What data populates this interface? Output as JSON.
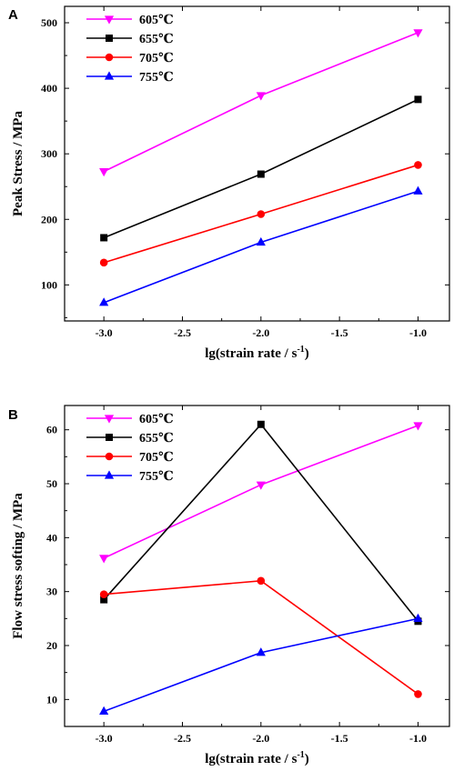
{
  "chart_data": [
    {
      "panel": "A",
      "type": "line",
      "xlabel": "lg(strain rate / s",
      "xlabel_sup": "-1",
      "xlabel_close": ")",
      "ylabel": "Peak Stress / MPa",
      "x": [
        -3.0,
        -2.0,
        -1.0
      ],
      "xlim": [
        -3.25,
        -0.8
      ],
      "ylim": [
        45,
        525
      ],
      "xticks": [
        -3.0,
        -2.5,
        -2.0,
        -1.5,
        -1.0
      ],
      "xtick_labels": [
        "-3.0",
        "-2.5",
        "-2.0",
        "-1.5",
        "-1.0"
      ],
      "yticks": [
        100,
        200,
        300,
        400,
        500
      ],
      "ytick_labels": [
        "100",
        "200",
        "300",
        "400",
        "500"
      ],
      "grid": false,
      "legend_position": "top-left",
      "series": [
        {
          "name": "605℃",
          "color": "#ff00ff",
          "marker": "triangle-down",
          "values": [
            273,
            389,
            485
          ]
        },
        {
          "name": "655℃",
          "color": "#000000",
          "marker": "square",
          "values": [
            172,
            269,
            383
          ]
        },
        {
          "name": "705℃",
          "color": "#ff0000",
          "marker": "circle",
          "values": [
            134,
            208,
            283
          ]
        },
        {
          "name": "755℃",
          "color": "#0000ff",
          "marker": "triangle-up",
          "values": [
            73,
            165,
            243
          ]
        }
      ]
    },
    {
      "panel": "B",
      "type": "line",
      "xlabel": "lg(strain rate / s",
      "xlabel_sup": "-1",
      "xlabel_close": ")",
      "ylabel": "Flow stress softing / MPa",
      "x": [
        -3.0,
        -2.0,
        -1.0
      ],
      "xlim": [
        -3.25,
        -0.8
      ],
      "ylim": [
        5,
        64.5
      ],
      "xticks": [
        -3.0,
        -2.5,
        -2.0,
        -1.5,
        -1.0
      ],
      "xtick_labels": [
        "-3.0",
        "-2.5",
        "-2.0",
        "-1.5",
        "-1.0"
      ],
      "yticks": [
        10,
        20,
        30,
        40,
        50,
        60
      ],
      "ytick_labels": [
        "10",
        "20",
        "30",
        "40",
        "50",
        "60"
      ],
      "grid": false,
      "legend_position": "top-left",
      "series": [
        {
          "name": "605℃",
          "color": "#ff00ff",
          "marker": "triangle-down",
          "values": [
            36.2,
            49.8,
            60.8
          ]
        },
        {
          "name": "655℃",
          "color": "#000000",
          "marker": "square",
          "values": [
            28.5,
            61.0,
            24.5
          ]
        },
        {
          "name": "705℃",
          "color": "#ff0000",
          "marker": "circle",
          "values": [
            29.5,
            32.0,
            11.0
          ]
        },
        {
          "name": "755℃",
          "color": "#0000ff",
          "marker": "triangle-up",
          "values": [
            7.8,
            18.7,
            25.0
          ]
        }
      ]
    }
  ]
}
